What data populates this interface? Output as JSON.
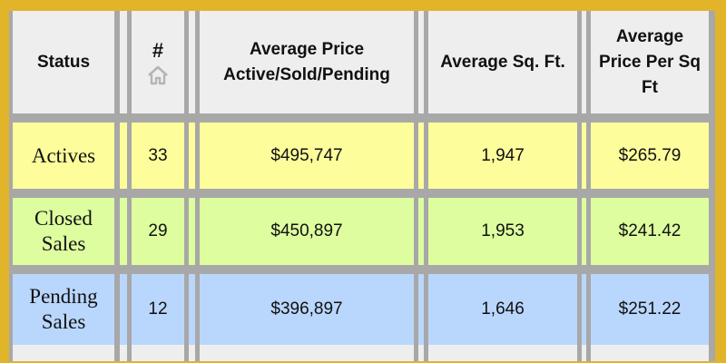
{
  "colors": {
    "border": "#e2b42a",
    "header_bg": "#eeeeee",
    "grid": "#a8a8a8",
    "actives_row": "#fdfd9c",
    "closed_row": "#ddfd9f",
    "pending_row": "#b9d7fd"
  },
  "header": {
    "status": "Status",
    "count": "#",
    "count_icon": "house-icon",
    "avg_price": "Average Price Active/Sold/Pending",
    "avg_sqft": "Average Sq. Ft.",
    "avg_ppsf": "Average Price Per Sq Ft"
  },
  "rows": [
    {
      "status": "Actives",
      "count": "33",
      "avg_price": "$495,747",
      "avg_sqft": "1,947",
      "avg_ppsf": "$265.79"
    },
    {
      "status": "Closed Sales",
      "count": "29",
      "avg_price": "$450,897",
      "avg_sqft": "1,953",
      "avg_ppsf": "$241.42"
    },
    {
      "status": "Pending Sales",
      "count": "12",
      "avg_price": "$396,897",
      "avg_sqft": "1,646",
      "avg_ppsf": "$251.22"
    }
  ]
}
